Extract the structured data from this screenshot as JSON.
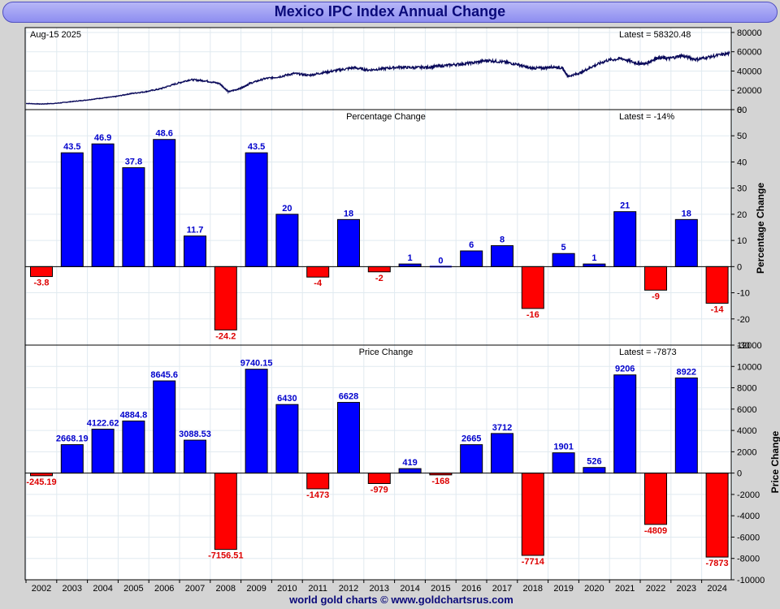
{
  "header": {
    "title": "Mexico IPC Index Annual Change"
  },
  "footer": {
    "credit": "world gold charts © www.goldchartsrus.com"
  },
  "chart_data": [
    {
      "type": "line",
      "panel": "price-history",
      "date_label": "Aug-15  2025",
      "latest_label": "Latest = 58320.48",
      "ylim": [
        0,
        85000
      ],
      "yticks": [
        0,
        20000,
        40000,
        60000,
        80000
      ],
      "x_range": [
        2002,
        2025.62
      ],
      "x": [
        2002.0,
        2002.5,
        2003.0,
        2003.5,
        2004.0,
        2004.5,
        2005.0,
        2005.5,
        2006.0,
        2006.5,
        2007.0,
        2007.5,
        2008.0,
        2008.5,
        2008.8,
        2009.2,
        2009.5,
        2010.0,
        2010.5,
        2011.0,
        2011.5,
        2012.0,
        2012.5,
        2013.0,
        2013.5,
        2014.0,
        2014.5,
        2015.0,
        2015.5,
        2016.0,
        2016.5,
        2017.0,
        2017.5,
        2018.0,
        2018.5,
        2018.9,
        2019.3,
        2019.7,
        2020.0,
        2020.2,
        2020.6,
        2021.0,
        2021.5,
        2022.0,
        2022.5,
        2022.8,
        2023.2,
        2023.6,
        2024.0,
        2024.5,
        2025.0,
        2025.62
      ],
      "y": [
        6400,
        5800,
        6500,
        8200,
        9800,
        11800,
        13500,
        16500,
        18500,
        21500,
        26500,
        31000,
        30000,
        27000,
        18500,
        22000,
        27000,
        32000,
        34000,
        37500,
        35500,
        38500,
        41000,
        43500,
        41000,
        42500,
        44000,
        43500,
        44000,
        45500,
        47000,
        48500,
        51000,
        49500,
        47000,
        43000,
        43000,
        44500,
        43000,
        34500,
        38000,
        44500,
        51000,
        53000,
        48000,
        47500,
        54000,
        53000,
        56000,
        52000,
        55000,
        58320
      ]
    },
    {
      "type": "bar",
      "panel": "percentage-change",
      "title": "Percentage Change",
      "latest_label": "Latest = -14%",
      "ylabel": "Percentage Change",
      "ylim": [
        -30,
        60
      ],
      "yticks": [
        -30,
        -20,
        -10,
        0,
        10,
        20,
        30,
        40,
        50,
        60
      ],
      "categories": [
        "2002",
        "2003",
        "2004",
        "2005",
        "2006",
        "2007",
        "2008",
        "2009",
        "2010",
        "2011",
        "2012",
        "2013",
        "2014",
        "2015",
        "2016",
        "2017",
        "2018",
        "2019",
        "2020",
        "2021",
        "2022",
        "2023",
        "2024"
      ],
      "values": [
        -3.8,
        43.5,
        46.9,
        37.8,
        48.6,
        11.7,
        -24.2,
        43.5,
        20,
        -4,
        18,
        -2,
        1,
        0,
        6,
        8,
        -16,
        5,
        1,
        21,
        -9,
        18,
        -14
      ],
      "labels": [
        "-3.8",
        "43.5",
        "46.9",
        "37.8",
        "48.6",
        "11.7",
        "-24.2",
        "43.5",
        "20",
        "-4",
        "18",
        "-2",
        "1",
        "0",
        "6",
        "8",
        "-16",
        "5",
        "1",
        "21",
        "-9",
        "18",
        "-14"
      ]
    },
    {
      "type": "bar",
      "panel": "price-change",
      "title": "Price Change",
      "latest_label": "Latest = -7873",
      "ylabel": "Price Change",
      "ylim": [
        -10000,
        12000
      ],
      "yticks": [
        -10000,
        -8000,
        -6000,
        -4000,
        -2000,
        0,
        2000,
        4000,
        6000,
        8000,
        10000,
        12000
      ],
      "categories": [
        "2002",
        "2003",
        "2004",
        "2005",
        "2006",
        "2007",
        "2008",
        "2009",
        "2010",
        "2011",
        "2012",
        "2013",
        "2014",
        "2015",
        "2016",
        "2017",
        "2018",
        "2019",
        "2020",
        "2021",
        "2022",
        "2023",
        "2024"
      ],
      "values": [
        -245.19,
        2668.19,
        4122.62,
        4884.8,
        8645.6,
        3088.53,
        -7156.51,
        9740.15,
        6430,
        -1473,
        6628,
        -979,
        419,
        -168,
        2665,
        3712,
        -7714,
        1901,
        526,
        9206,
        -4809,
        8922,
        -7873
      ],
      "labels": [
        "-245.19",
        "2668.19",
        "4122.62",
        "4884.8",
        "8645.6",
        "3088.53",
        "-7156.51",
        "9740.15",
        "6430",
        "-1473",
        "6628",
        "-979",
        "419",
        "-168",
        "2665",
        "3712",
        "-7714",
        "1901",
        "526",
        "9206",
        "-4809",
        "8922",
        "-7873"
      ]
    }
  ],
  "colors": {
    "positive": "#0000ff",
    "negative": "#ff0000",
    "line": "#0a0a5a",
    "label_pos": "#0000cc",
    "label_neg": "#dd0000",
    "grid": "#e0eaf0"
  }
}
